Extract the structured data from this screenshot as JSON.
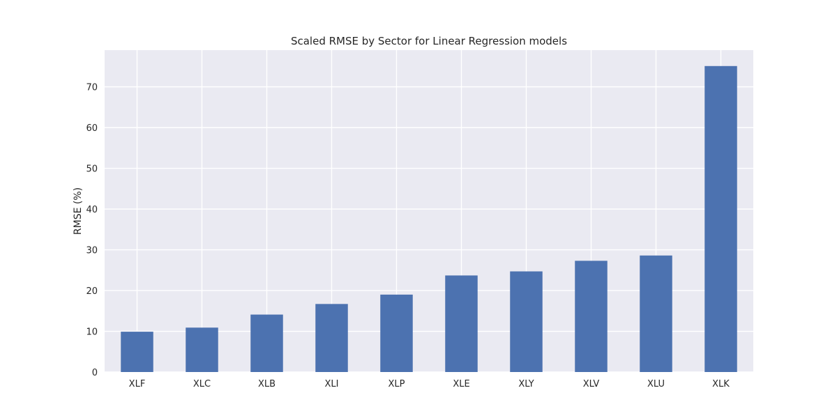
{
  "chart_data": {
    "type": "bar",
    "title": "Scaled RMSE by Sector for Linear Regression models",
    "xlabel": "",
    "ylabel": "RMSE (%)",
    "categories": [
      "XLF",
      "XLC",
      "XLB",
      "XLI",
      "XLP",
      "XLE",
      "XLY",
      "XLV",
      "XLU",
      "XLK"
    ],
    "values": [
      9.9,
      10.9,
      14.1,
      16.7,
      19.0,
      23.7,
      24.7,
      27.3,
      28.6,
      75.1
    ],
    "ylim": [
      0,
      79
    ],
    "yticks": [
      0,
      10,
      20,
      30,
      40,
      50,
      60,
      70
    ],
    "grid": true,
    "bar_color": "#4c72b0",
    "background_color": "#eaeaf2",
    "grid_color": "#ffffff"
  }
}
